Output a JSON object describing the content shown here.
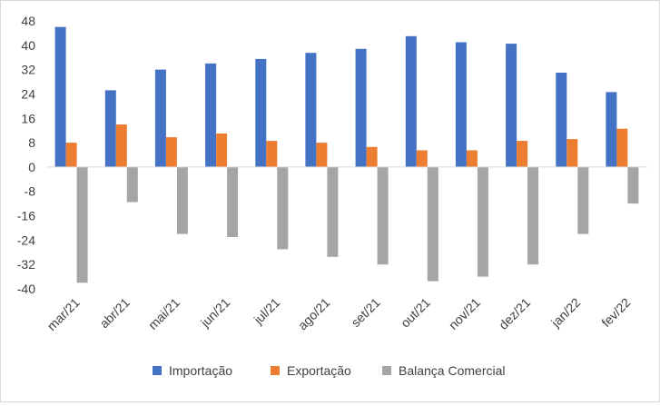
{
  "chart_data": {
    "type": "bar",
    "categories": [
      "mar/21",
      "abr/21",
      "mai/21",
      "jun/21",
      "jul/21",
      "ago/21",
      "set/21",
      "out/21",
      "nov/21",
      "dez/21",
      "jan/22",
      "fev/22"
    ],
    "series": [
      {
        "name": "Importação",
        "color": "#4472C4",
        "values": [
          46,
          25.2,
          32,
          34,
          35.5,
          37.5,
          38.8,
          43,
          41,
          40.5,
          31,
          24.6
        ]
      },
      {
        "name": "Exportação",
        "color": "#ED7D31",
        "values": [
          8,
          14,
          9.8,
          11,
          8.6,
          8,
          6.6,
          5.5,
          5.5,
          8.6,
          9.2,
          12.6
        ]
      },
      {
        "name": "Balança Comercial",
        "color": "#A5A5A5",
        "values": [
          -38,
          -11.5,
          -22,
          -23,
          -27,
          -29.5,
          -32,
          -37.5,
          -36,
          -32,
          -22,
          -12
        ]
      }
    ],
    "yticks": [
      "48",
      "40",
      "32",
      "24",
      "16",
      "8",
      "0",
      "-8",
      "-16",
      "-24",
      "-32",
      "-40"
    ],
    "ylim": [
      -40,
      48
    ],
    "grid": false,
    "legend": "bottom"
  }
}
